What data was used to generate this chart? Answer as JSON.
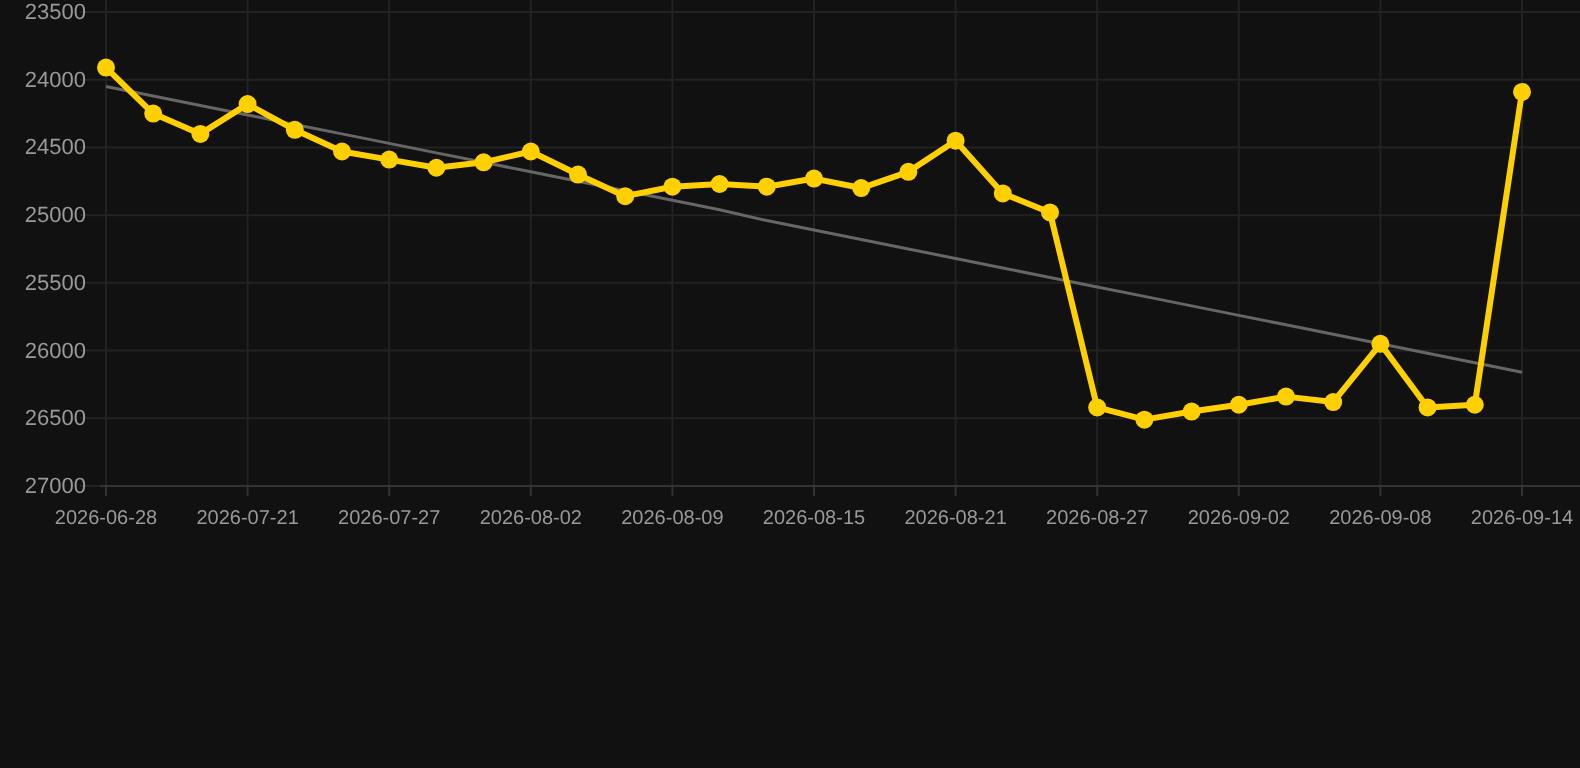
{
  "chart_data": {
    "type": "line",
    "categories": [
      "2026-06-28",
      null,
      null,
      "2026-07-21",
      null,
      null,
      "2026-07-27",
      null,
      null,
      "2026-08-02",
      null,
      null,
      "2026-08-09",
      null,
      null,
      "2026-08-15",
      null,
      null,
      "2026-08-21",
      null,
      null,
      "2026-08-27",
      null,
      null,
      "2026-09-02",
      null,
      null,
      "2026-09-08",
      null,
      null,
      "2026-09-14"
    ],
    "series": [
      {
        "color": "#ffd000",
        "marker": "circle",
        "values": [
          23910,
          24250,
          24400,
          24180,
          24370,
          24530,
          24590,
          24650,
          24610,
          24530,
          24700,
          24860,
          24790,
          24770,
          24790,
          24730,
          24800,
          24680,
          24450,
          24840,
          24980,
          26420,
          26510,
          26450,
          26400,
          26340,
          26380,
          25950,
          26420,
          26400,
          24090
        ]
      },
      {
        "color": "#666666",
        "marker": "none",
        "values": [
          24050,
          24120,
          24190,
          24260,
          24330,
          24400,
          24470,
          24540,
          24610,
          24680,
          24750,
          24820,
          24890,
          24960,
          25040,
          25110,
          25180,
          25250,
          25320,
          25390,
          25460,
          25530,
          25600,
          25670,
          25740,
          25810,
          25880,
          25950,
          26020,
          26090,
          26160
        ]
      }
    ],
    "ylim": [
      27000,
      23500
    ],
    "yticks": [
      23500,
      24000,
      24500,
      25000,
      25500,
      26000,
      26500,
      27000
    ],
    "grid": true
  }
}
